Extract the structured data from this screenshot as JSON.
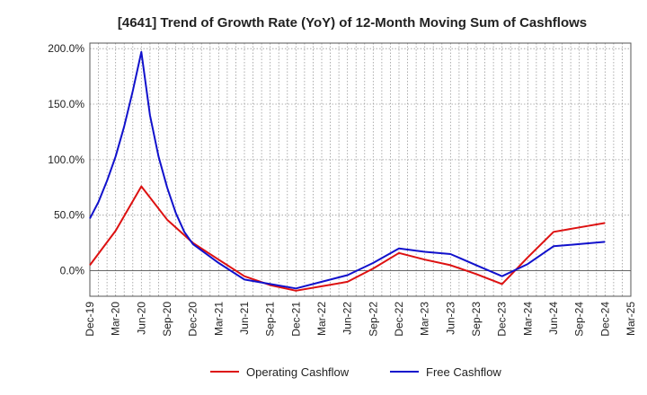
{
  "chart_data": {
    "type": "line",
    "title": "[4641]  Trend of Growth Rate (YoY) of 12-Month Moving Sum of Cashflows",
    "xlabel": "",
    "ylabel": "",
    "x_tick_labels": [
      "Dec-19",
      "Mar-20",
      "Jun-20",
      "Sep-20",
      "Dec-20",
      "Mar-21",
      "Jun-21",
      "Sep-21",
      "Dec-21",
      "Mar-22",
      "Jun-22",
      "Sep-22",
      "Dec-22",
      "Mar-23",
      "Jun-23",
      "Sep-23",
      "Dec-23",
      "Mar-24",
      "Jun-24",
      "Sep-24",
      "Dec-24",
      "Mar-25"
    ],
    "y_ticks": [
      0,
      50,
      100,
      150,
      200
    ],
    "y_tick_labels": [
      "0.0%",
      "50.0%",
      "100.0%",
      "150.0%",
      "200.0%"
    ],
    "ylim": [
      -23,
      205
    ],
    "grid": true,
    "legend_position": "bottom",
    "series": [
      {
        "name": "Operating Cashflow",
        "color": "#dd1111",
        "x": [
          "Dec-19",
          "Mar-20",
          "Jun-20",
          "Sep-20",
          "Dec-20",
          "Mar-21",
          "Jun-21",
          "Sep-21",
          "Dec-21",
          "Mar-22",
          "Jun-22",
          "Sep-22",
          "Dec-22",
          "Mar-23",
          "Jun-23",
          "Sep-23",
          "Dec-23",
          "Mar-24",
          "Jun-24",
          "Sep-24",
          "Dec-24"
        ],
        "values": [
          5,
          36,
          76,
          46,
          25,
          10,
          -5,
          -13,
          -18,
          -14,
          -10,
          2,
          16,
          10,
          5,
          -3,
          -12,
          12,
          35,
          39,
          43
        ]
      },
      {
        "name": "Free Cashflow",
        "color": "#1111cc",
        "x": [
          "Dec-19",
          "Jan-20",
          "Feb-20",
          "Mar-20",
          "Apr-20",
          "May-20",
          "Jun-20",
          "Jul-20",
          "Aug-20",
          "Sep-20",
          "Oct-20",
          "Nov-20",
          "Dec-20",
          "Mar-21",
          "Jun-21",
          "Sep-21",
          "Dec-21",
          "Mar-22",
          "Jun-22",
          "Sep-22",
          "Dec-22",
          "Mar-23",
          "Jun-23",
          "Sep-23",
          "Dec-23",
          "Mar-24",
          "Jun-24",
          "Sep-24",
          "Dec-24"
        ],
        "values": [
          47,
          62,
          81,
          103,
          130,
          162,
          197,
          140,
          103,
          75,
          52,
          35,
          24,
          7,
          -8,
          -12,
          -16,
          -10,
          -4,
          7,
          20,
          17,
          15,
          5,
          -5,
          6,
          22,
          24,
          26
        ]
      }
    ]
  }
}
